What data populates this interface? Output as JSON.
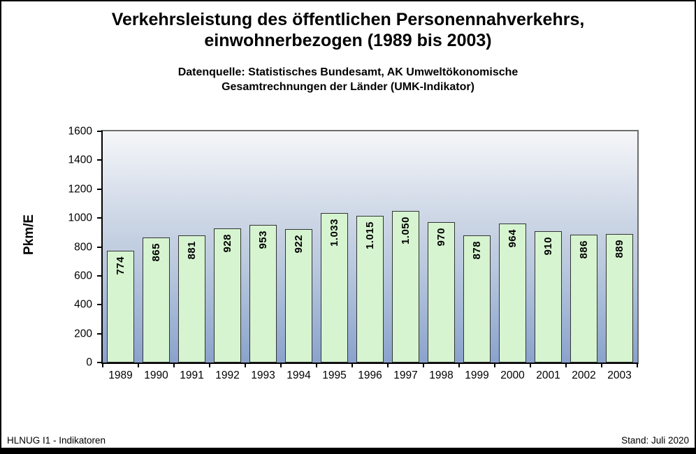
{
  "header": {
    "title": "Verkehrsleistung des öffentlichen Personennahverkehrs,\neinwohnerbezogen (1989 bis 2003)",
    "subtitle": "Datenquelle: Statistisches Bundesamt, AK Umweltökonomische\nGesamtrechnungen der Länder (UMK-Indikator)"
  },
  "chart_data": {
    "type": "bar",
    "title": "Verkehrsleistung des öffentlichen Personennahverkehrs, einwohnerbezogen (1989 bis 2003)",
    "subtitle": "Datenquelle: Statistisches Bundesamt, AK Umweltökonomische Gesamtrechnungen der Länder (UMK-Indikator)",
    "categories": [
      "1989",
      "1990",
      "1991",
      "1992",
      "1993",
      "1994",
      "1995",
      "1996",
      "1997",
      "1998",
      "1999",
      "2000",
      "2001",
      "2002",
      "2003"
    ],
    "values": [
      774,
      865,
      881,
      928,
      953,
      922,
      1033,
      1015,
      1050,
      970,
      878,
      964,
      910,
      886,
      889
    ],
    "value_labels": [
      "774",
      "865",
      "881",
      "928",
      "953",
      "922",
      "1.033",
      "1.015",
      "1.050",
      "970",
      "878",
      "964",
      "910",
      "886",
      "889"
    ],
    "xlabel": "",
    "ylabel": "Pkm/E",
    "ylim": [
      0,
      1600
    ],
    "yticks": [
      0,
      200,
      400,
      600,
      800,
      1000,
      1200,
      1400,
      1600
    ],
    "grid": false,
    "legend": "none",
    "value_label_rotation_deg": 90,
    "colors": {
      "bar_fill": "#d6f4d0",
      "bar_border": "#333333",
      "plot_bg_gradient_top": "#f5f6f8",
      "plot_bg_gradient_bottom": "#8aa2cc",
      "axis": "#000000",
      "text": "#000000"
    }
  },
  "footer": {
    "left": "HLNUG I1 - Indikatoren",
    "right": "Stand: Juli 2020"
  }
}
